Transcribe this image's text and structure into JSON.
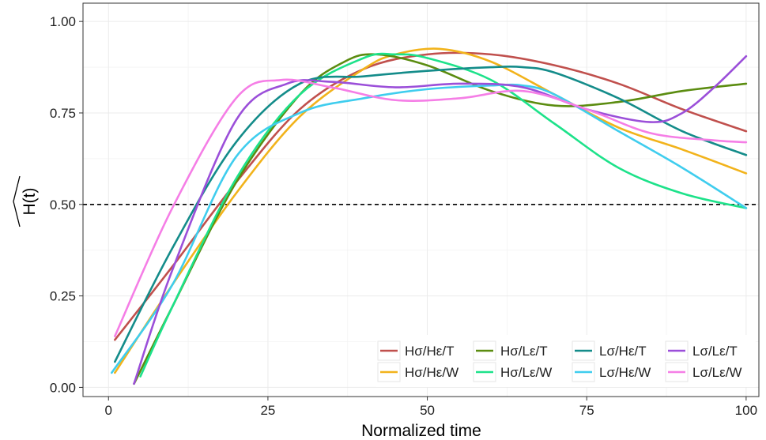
{
  "chart_data": {
    "type": "line",
    "xlabel": "Normalized time",
    "ylabel": "H(t)",
    "xlim": [
      -4,
      102
    ],
    "ylim": [
      -0.025,
      1.05
    ],
    "xticks": [
      0,
      25,
      50,
      75,
      100
    ],
    "yticks": [
      0.0,
      0.25,
      0.5,
      0.75,
      1.0
    ],
    "xtick_labels": [
      "0",
      "25",
      "50",
      "75",
      "100"
    ],
    "ytick_labels": [
      "0.00",
      "0.25",
      "0.50",
      "0.75",
      "1.00"
    ],
    "grid": true,
    "legend_position": "bottom-right",
    "reference_line": {
      "y": 0.5,
      "style": "dashed"
    },
    "series": [
      {
        "name": "Hσ/Hε/T",
        "color": "#c0504d",
        "x": [
          1,
          10,
          20,
          30,
          40,
          50,
          60,
          70,
          80,
          90,
          100
        ],
        "y": [
          0.13,
          0.33,
          0.56,
          0.76,
          0.87,
          0.91,
          0.91,
          0.88,
          0.83,
          0.76,
          0.7
        ]
      },
      {
        "name": "Hσ/Hε/W",
        "color": "#f2b31b",
        "x": [
          1,
          10,
          20,
          30,
          40,
          45,
          52,
          60,
          70,
          80,
          90,
          100
        ],
        "y": [
          0.04,
          0.28,
          0.53,
          0.74,
          0.87,
          0.91,
          0.925,
          0.89,
          0.8,
          0.71,
          0.65,
          0.585
        ]
      },
      {
        "name": "Hσ/Lε/T",
        "color": "#5b8c10",
        "x": [
          4,
          10,
          20,
          30,
          37,
          42,
          50,
          60,
          70,
          80,
          90,
          100
        ],
        "y": [
          0.01,
          0.22,
          0.56,
          0.8,
          0.89,
          0.91,
          0.88,
          0.81,
          0.77,
          0.78,
          0.81,
          0.83
        ]
      },
      {
        "name": "Hσ/Lε/W",
        "color": "#1de28a",
        "x": [
          5,
          10,
          20,
          30,
          40,
          45,
          50,
          60,
          70,
          80,
          90,
          100
        ],
        "y": [
          0.03,
          0.22,
          0.57,
          0.8,
          0.9,
          0.91,
          0.9,
          0.84,
          0.72,
          0.6,
          0.53,
          0.49
        ]
      },
      {
        "name": "Lσ/Hε/T",
        "color": "#148c8a",
        "x": [
          1,
          10,
          20,
          30,
          40,
          50,
          60,
          65,
          70,
          80,
          90,
          100
        ],
        "y": [
          0.07,
          0.38,
          0.67,
          0.83,
          0.85,
          0.865,
          0.875,
          0.875,
          0.86,
          0.79,
          0.7,
          0.635
        ]
      },
      {
        "name": "Lσ/Hε/W",
        "color": "#3fcdee",
        "x": [
          0.5,
          10,
          20,
          30,
          40,
          50,
          60,
          65,
          70,
          80,
          90,
          100
        ],
        "y": [
          0.04,
          0.28,
          0.63,
          0.75,
          0.79,
          0.815,
          0.825,
          0.825,
          0.8,
          0.7,
          0.6,
          0.49
        ]
      },
      {
        "name": "Lσ/Lε/T",
        "color": "#9b4fd9",
        "x": [
          4,
          10,
          20,
          28,
          35,
          45,
          55,
          65,
          75,
          85,
          90,
          95,
          100
        ],
        "y": [
          0.01,
          0.32,
          0.73,
          0.83,
          0.835,
          0.82,
          0.83,
          0.82,
          0.76,
          0.725,
          0.75,
          0.82,
          0.905
        ]
      },
      {
        "name": "Lσ/Lε/W",
        "color": "#f57ee6",
        "x": [
          1,
          10,
          20,
          27,
          35,
          45,
          55,
          65,
          75,
          85,
          95,
          100
        ],
        "y": [
          0.14,
          0.49,
          0.79,
          0.84,
          0.82,
          0.785,
          0.79,
          0.81,
          0.76,
          0.695,
          0.675,
          0.67
        ]
      }
    ]
  }
}
